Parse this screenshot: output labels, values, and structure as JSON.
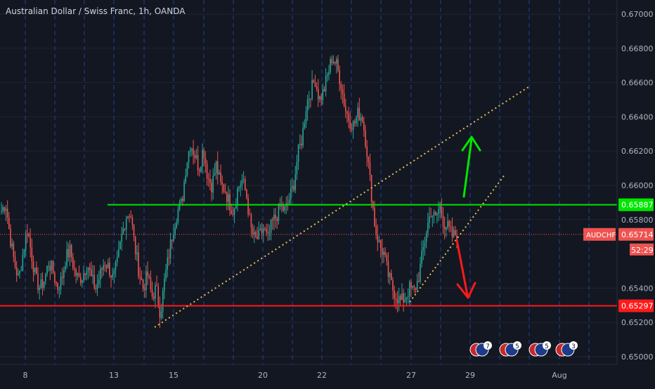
{
  "chart_data": {
    "type": "candlestick",
    "title": "Australian Dollar / Swiss Franc, 1h, OANDA",
    "symbol": "AUDCHF",
    "y_ticks": [
      "0.67000",
      "0.66800",
      "0.66600",
      "0.66400",
      "0.66200",
      "0.66000",
      "0.65800",
      "0.65400",
      "0.65200",
      "0.65000"
    ],
    "y_tick_values": [
      0.67,
      0.668,
      0.666,
      0.664,
      0.662,
      0.66,
      0.658,
      0.654,
      0.652,
      0.65
    ],
    "x_ticks": [
      "8",
      "13",
      "15",
      "20",
      "22",
      "27",
      "29",
      "Aug"
    ],
    "ylim": [
      0.6494,
      0.6712
    ],
    "last_price": 0.65714,
    "last_price_label": "0.65714",
    "countdown": "52:29",
    "resistance": {
      "price": 0.65887,
      "label": "0.65887",
      "color": "#00e600"
    },
    "support": {
      "price": 0.65297,
      "label": "0.65297",
      "color": "#ff1a1a"
    },
    "up_color": "#26a69a",
    "down_color": "#ef5350",
    "event_badges": [
      "7",
      "5",
      "5",
      "3"
    ],
    "ohlc_seed": [
      0.6585,
      0.659,
      0.657,
      0.6555,
      0.6545,
      0.656,
      0.6575,
      0.656,
      0.6545,
      0.654,
      0.6545,
      0.6555,
      0.655,
      0.654,
      0.6545,
      0.6558,
      0.6562,
      0.655,
      0.6545,
      0.6548,
      0.6555,
      0.6545,
      0.654,
      0.6548,
      0.6556,
      0.6552,
      0.6545,
      0.6555,
      0.657,
      0.6582,
      0.6585,
      0.6565,
      0.655,
      0.654,
      0.6548,
      0.6535,
      0.654,
      0.6525,
      0.6545,
      0.656,
      0.6575,
      0.6585,
      0.659,
      0.6612,
      0.6625,
      0.6618,
      0.661,
      0.6622,
      0.6605,
      0.66,
      0.6612,
      0.66,
      0.6598,
      0.659,
      0.6585,
      0.6598,
      0.6603,
      0.6595,
      0.6575,
      0.6568,
      0.657,
      0.6575,
      0.6568,
      0.6578,
      0.6582,
      0.6588,
      0.6585,
      0.6592,
      0.66,
      0.6618,
      0.6628,
      0.6648,
      0.6655,
      0.6662,
      0.665,
      0.6655,
      0.6665,
      0.6675,
      0.667,
      0.666,
      0.6645,
      0.6638,
      0.6635,
      0.6642,
      0.664,
      0.6622,
      0.6598,
      0.6575,
      0.6565,
      0.656,
      0.6548,
      0.654,
      0.6535,
      0.6532,
      0.6535,
      0.654,
      0.6538,
      0.6545,
      0.656,
      0.6575,
      0.6585,
      0.658,
      0.6588,
      0.6578,
      0.6575,
      0.657,
      0.6572
    ]
  }
}
